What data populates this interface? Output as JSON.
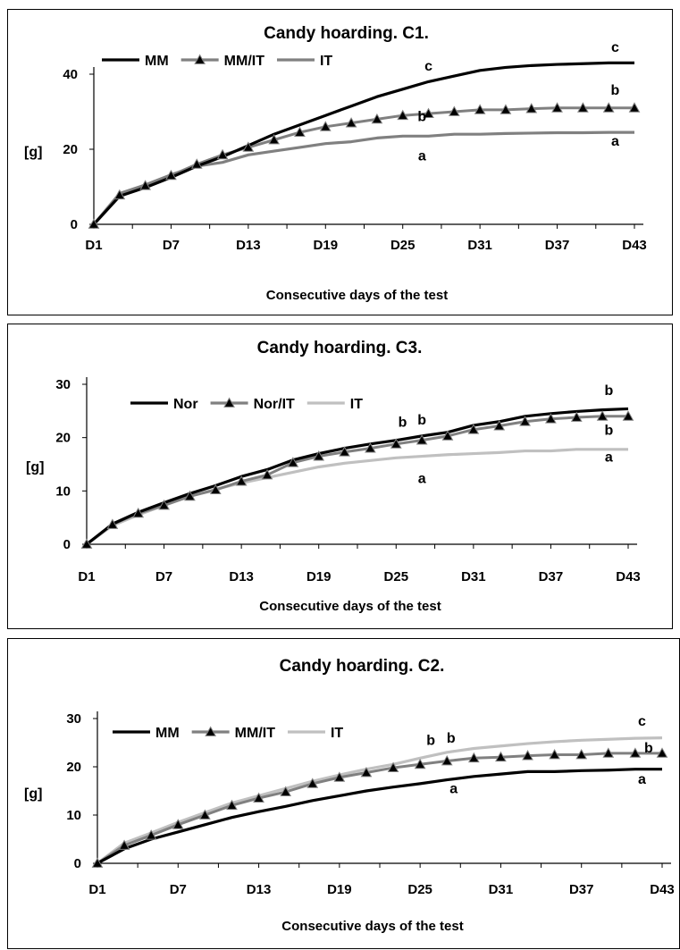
{
  "chart_data": [
    {
      "type": "line",
      "title": "Candy hoarding. C1.",
      "xlabel": "Consecutive days of the test",
      "ylabel": "[g]",
      "ylim": [
        0,
        40
      ],
      "yticks": [
        0,
        20,
        40
      ],
      "xticks": [
        "D1",
        "D7",
        "D13",
        "D19",
        "D25",
        "D31",
        "D37",
        "D43"
      ],
      "x": [
        1,
        3,
        5,
        7,
        9,
        11,
        13,
        15,
        17,
        19,
        21,
        23,
        25,
        27,
        29,
        31,
        33,
        35,
        37,
        39,
        41,
        43
      ],
      "legend_position": "top-left",
      "series": [
        {
          "name": "MM",
          "color": "#000000",
          "marker": "none",
          "values": [
            0,
            7.5,
            9.8,
            12.5,
            15.5,
            18,
            21,
            24,
            26.5,
            29,
            31.5,
            34,
            36,
            38,
            39.5,
            41,
            41.8,
            42.3,
            42.6,
            42.8,
            43,
            43
          ]
        },
        {
          "name": "MM/IT",
          "color": "#808080",
          "marker": "triangle",
          "values": [
            0,
            7.8,
            10.3,
            13,
            16,
            18.5,
            20.5,
            22.5,
            24.5,
            26,
            27,
            28,
            29,
            29.5,
            30,
            30.5,
            30.5,
            30.8,
            31,
            31,
            31,
            31
          ]
        },
        {
          "name": "IT",
          "color": "#808080",
          "marker": "none",
          "values": [
            0,
            8.2,
            10.5,
            13.2,
            15.5,
            16.5,
            18.5,
            19.5,
            20.5,
            21.5,
            22,
            23,
            23.5,
            23.5,
            24,
            24,
            24.2,
            24.3,
            24.4,
            24.4,
            24.5,
            24.5
          ]
        }
      ],
      "annotations": [
        {
          "text": "c",
          "x": 41.5,
          "y": 46
        },
        {
          "text": "c",
          "x": 27,
          "y": 41
        },
        {
          "text": "b",
          "x": 41.5,
          "y": 34.5
        },
        {
          "text": "b",
          "x": 26.5,
          "y": 27.5
        },
        {
          "text": "a",
          "x": 41.5,
          "y": 21
        },
        {
          "text": "a",
          "x": 26.5,
          "y": 17
        }
      ]
    },
    {
      "type": "line",
      "title": "Candy hoarding. C3.",
      "xlabel": "Consecutive days of the test",
      "ylabel": "[g]",
      "ylim": [
        0,
        30
      ],
      "yticks": [
        0,
        10,
        20,
        30
      ],
      "xticks": [
        "D1",
        "D7",
        "D13",
        "D19",
        "D25",
        "D31",
        "D37",
        "D43"
      ],
      "x": [
        1,
        3,
        5,
        7,
        9,
        11,
        13,
        15,
        17,
        19,
        21,
        23,
        25,
        27,
        29,
        31,
        33,
        35,
        37,
        39,
        41,
        43
      ],
      "legend_position": "top-left",
      "series": [
        {
          "name": "Nor",
          "color": "#000000",
          "marker": "none",
          "values": [
            0,
            3.8,
            6,
            7.8,
            9.5,
            11,
            12.7,
            14,
            15.8,
            17,
            18,
            18.8,
            19.5,
            20.3,
            21,
            22.3,
            23,
            24,
            24.5,
            24.9,
            25.2,
            25.4
          ]
        },
        {
          "name": "Nor/IT",
          "color": "#808080",
          "marker": "triangle",
          "values": [
            0,
            3.7,
            5.8,
            7.3,
            9,
            10.2,
            11.8,
            13,
            15.3,
            16.5,
            17.3,
            18,
            18.8,
            19.5,
            20.3,
            21.5,
            22.2,
            23,
            23.5,
            23.8,
            24,
            24
          ]
        },
        {
          "name": "IT",
          "color": "#c0c0c0",
          "marker": "none",
          "values": [
            0,
            3.5,
            5.5,
            7.3,
            9,
            10.3,
            11.5,
            12.5,
            13.5,
            14.5,
            15.2,
            15.7,
            16.2,
            16.5,
            16.8,
            17,
            17.2,
            17.5,
            17.5,
            17.8,
            17.8,
            17.8
          ]
        }
      ],
      "annotations": [
        {
          "text": "b",
          "x": 25.5,
          "y": 22
        },
        {
          "text": "b",
          "x": 27,
          "y": 22.5
        },
        {
          "text": "b",
          "x": 41.5,
          "y": 28
        },
        {
          "text": "b",
          "x": 41.5,
          "y": 20.5
        },
        {
          "text": "a",
          "x": 41.5,
          "y": 15.5
        },
        {
          "text": "a",
          "x": 27,
          "y": 11.5
        }
      ]
    },
    {
      "type": "line",
      "title": "Candy hoarding. C2.",
      "xlabel": "Consecutive days of the test",
      "ylabel": "[g]",
      "ylim": [
        0,
        30
      ],
      "yticks": [
        0,
        10,
        20,
        30
      ],
      "xticks": [
        "D1",
        "D7",
        "D13",
        "D19",
        "D25",
        "D31",
        "D37",
        "D43"
      ],
      "x": [
        1,
        3,
        5,
        7,
        9,
        11,
        13,
        15,
        17,
        19,
        21,
        23,
        25,
        27,
        29,
        31,
        33,
        35,
        37,
        39,
        41,
        43
      ],
      "legend_position": "top-left",
      "series": [
        {
          "name": "MM",
          "color": "#000000",
          "marker": "none",
          "values": [
            0,
            3,
            5,
            6.5,
            8,
            9.5,
            10.7,
            11.8,
            13,
            14,
            15,
            15.8,
            16.5,
            17.3,
            18,
            18.5,
            19,
            19,
            19.2,
            19.3,
            19.5,
            19.5
          ]
        },
        {
          "name": "MM/IT",
          "color": "#808080",
          "marker": "triangle",
          "values": [
            0,
            3.7,
            5.8,
            8,
            10,
            12,
            13.5,
            14.8,
            16.5,
            17.8,
            18.8,
            19.8,
            20.5,
            21.2,
            21.8,
            22,
            22.3,
            22.5,
            22.5,
            22.8,
            22.8,
            22.8
          ]
        },
        {
          "name": "IT",
          "color": "#c0c0c0",
          "marker": "none",
          "values": [
            0,
            4.2,
            6.3,
            8.5,
            10.5,
            12.5,
            14,
            15.5,
            17,
            18.3,
            19.5,
            20.5,
            21.8,
            23,
            23.8,
            24.3,
            24.8,
            25.2,
            25.5,
            25.7,
            25.9,
            26
          ]
        }
      ],
      "annotations": [
        {
          "text": "b",
          "x": 25.8,
          "y": 24.5
        },
        {
          "text": "b",
          "x": 27.3,
          "y": 25
        },
        {
          "text": "c",
          "x": 41.5,
          "y": 28.5
        },
        {
          "text": "b",
          "x": 42,
          "y": 23
        },
        {
          "text": "a",
          "x": 41.5,
          "y": 16.5
        },
        {
          "text": "a",
          "x": 27.5,
          "y": 14.5
        }
      ]
    }
  ]
}
